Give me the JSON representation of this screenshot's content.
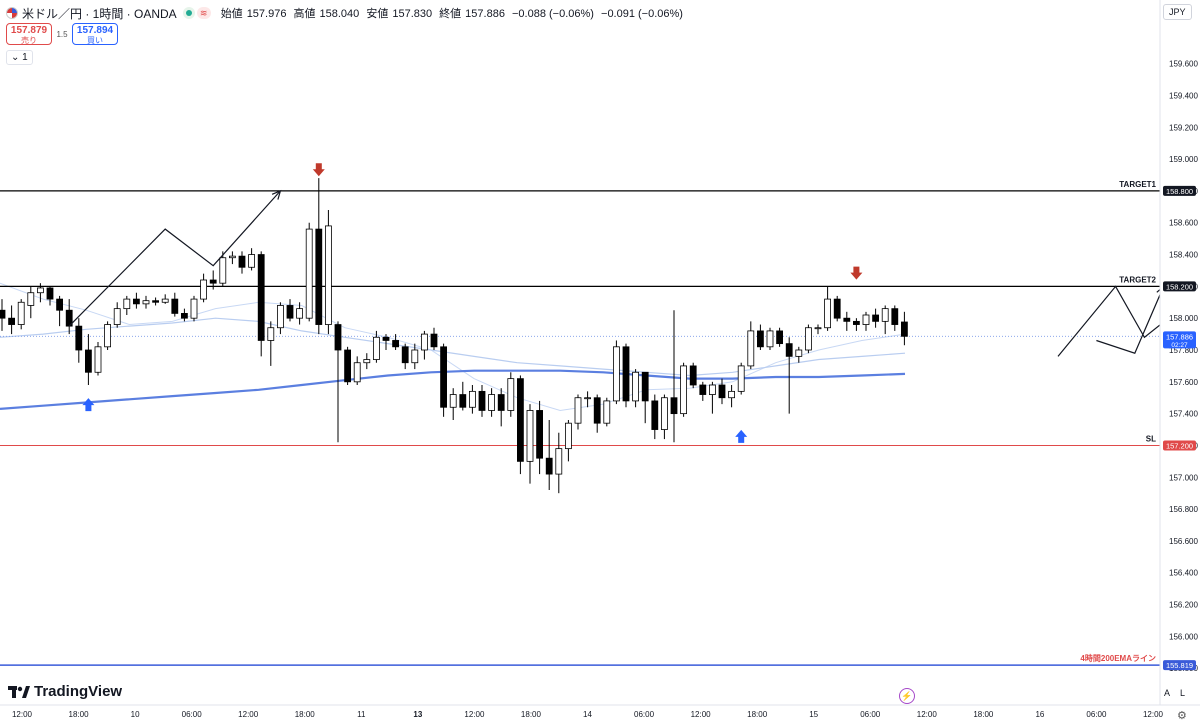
{
  "header": {
    "symbol": "米ドル／円 · 1時間 · OANDA",
    "wave_icon": "≋",
    "ohlc": [
      {
        "label": "始値",
        "value": "157.976"
      },
      {
        "label": "高値",
        "value": "158.040"
      },
      {
        "label": "安値",
        "value": "157.830"
      },
      {
        "label": "終値",
        "value": "157.886"
      }
    ],
    "change": "−0.088 (−0.06%)",
    "change2": "−0.091 (−0.06%)"
  },
  "trade": {
    "sell_price": "157.879",
    "sell_label": "売り",
    "spread": "1.5",
    "buy_price": "157.894",
    "buy_label": "買い"
  },
  "interval_label": "1",
  "currency": "JPY",
  "logo_text": "TradingView",
  "scale_buttons": {
    "a": "A",
    "l": "L"
  },
  "colors": {
    "up_body": "#ffffff",
    "down_body": "#000000",
    "ema200": "#5b7fe0",
    "ma_light": "#b9cdf0",
    "target_line": "#000000",
    "sl_line": "#e04a4a",
    "ema4h_line": "#3a5bd9",
    "arrow_down": "#c0392b",
    "arrow_up": "#2962ff"
  },
  "chart_data": {
    "type": "candlestick",
    "symbol": "USD/JPY",
    "timeframe": "1H",
    "ylim": [
      155.6,
      160.0
    ],
    "y_ticks": [
      "159.600",
      "159.400",
      "159.200",
      "159.000",
      "158.800",
      "158.600",
      "158.400",
      "158.200",
      "158.000",
      "157.800",
      "157.600",
      "157.400",
      "157.200",
      "157.000",
      "156.800",
      "156.600",
      "156.400",
      "156.200",
      "156.000",
      "155.800"
    ],
    "x_ticks": [
      "12:00",
      "18:00",
      "10",
      "06:00",
      "12:00",
      "18:00",
      "11",
      "13",
      "12:00",
      "18:00",
      "14",
      "06:00",
      "12:00",
      "18:00",
      "15",
      "06:00",
      "12:00",
      "18:00",
      "16",
      "06:00",
      "12:00"
    ],
    "x_tick_bold": [
      "13"
    ],
    "levels": [
      {
        "label": "TARGET1",
        "price": 158.8,
        "tag": "158.800",
        "kind": "target"
      },
      {
        "label": "TARGET2",
        "price": 158.2,
        "tag": "158.200",
        "kind": "target"
      },
      {
        "label": "SL",
        "price": 157.2,
        "tag": "157.200",
        "kind": "sl"
      },
      {
        "label": "4時間200EMAライン",
        "price": 155.819,
        "tag": "155.819",
        "kind": "ema4h"
      }
    ],
    "last_price": {
      "value": "157.886",
      "countdown": "02:27",
      "price": 157.886
    },
    "candles": [
      {
        "o": 158.05,
        "h": 158.12,
        "l": 157.92,
        "c": 158.0
      },
      {
        "o": 158.0,
        "h": 158.08,
        "l": 157.9,
        "c": 157.96
      },
      {
        "o": 157.96,
        "h": 158.12,
        "l": 157.93,
        "c": 158.1
      },
      {
        "o": 158.08,
        "h": 158.2,
        "l": 158.0,
        "c": 158.16
      },
      {
        "o": 158.16,
        "h": 158.22,
        "l": 158.1,
        "c": 158.19
      },
      {
        "o": 158.19,
        "h": 158.2,
        "l": 158.08,
        "c": 158.12
      },
      {
        "o": 158.12,
        "h": 158.14,
        "l": 157.95,
        "c": 158.05
      },
      {
        "o": 158.05,
        "h": 158.12,
        "l": 157.9,
        "c": 157.95
      },
      {
        "o": 157.95,
        "h": 158.0,
        "l": 157.72,
        "c": 157.8
      },
      {
        "o": 157.8,
        "h": 157.9,
        "l": 157.58,
        "c": 157.66
      },
      {
        "o": 157.66,
        "h": 157.85,
        "l": 157.64,
        "c": 157.82
      },
      {
        "o": 157.82,
        "h": 157.98,
        "l": 157.8,
        "c": 157.96
      },
      {
        "o": 157.96,
        "h": 158.1,
        "l": 157.94,
        "c": 158.06
      },
      {
        "o": 158.06,
        "h": 158.14,
        "l": 158.02,
        "c": 158.12
      },
      {
        "o": 158.12,
        "h": 158.16,
        "l": 158.06,
        "c": 158.09
      },
      {
        "o": 158.09,
        "h": 158.14,
        "l": 158.06,
        "c": 158.11
      },
      {
        "o": 158.11,
        "h": 158.13,
        "l": 158.08,
        "c": 158.1
      },
      {
        "o": 158.1,
        "h": 158.15,
        "l": 158.09,
        "c": 158.12
      },
      {
        "o": 158.12,
        "h": 158.16,
        "l": 158.01,
        "c": 158.03
      },
      {
        "o": 158.03,
        "h": 158.06,
        "l": 157.98,
        "c": 158.0
      },
      {
        "o": 158.0,
        "h": 158.14,
        "l": 157.98,
        "c": 158.12
      },
      {
        "o": 158.12,
        "h": 158.28,
        "l": 158.1,
        "c": 158.24
      },
      {
        "o": 158.24,
        "h": 158.3,
        "l": 158.18,
        "c": 158.22
      },
      {
        "o": 158.22,
        "h": 158.42,
        "l": 158.2,
        "c": 158.38
      },
      {
        "o": 158.38,
        "h": 158.42,
        "l": 158.34,
        "c": 158.39
      },
      {
        "o": 158.39,
        "h": 158.42,
        "l": 158.28,
        "c": 158.32
      },
      {
        "o": 158.32,
        "h": 158.44,
        "l": 158.3,
        "c": 158.4
      },
      {
        "o": 158.4,
        "h": 158.42,
        "l": 157.76,
        "c": 157.86
      },
      {
        "o": 157.86,
        "h": 157.98,
        "l": 157.7,
        "c": 157.94
      },
      {
        "o": 157.94,
        "h": 158.1,
        "l": 157.9,
        "c": 158.08
      },
      {
        "o": 158.08,
        "h": 158.12,
        "l": 157.98,
        "c": 158.0
      },
      {
        "o": 158.0,
        "h": 158.1,
        "l": 157.96,
        "c": 158.06
      },
      {
        "o": 158.0,
        "h": 158.6,
        "l": 157.98,
        "c": 158.56
      },
      {
        "o": 158.56,
        "h": 158.88,
        "l": 157.9,
        "c": 157.96
      },
      {
        "o": 157.96,
        "h": 158.68,
        "l": 157.9,
        "c": 158.58
      },
      {
        "o": 157.96,
        "h": 157.98,
        "l": 157.22,
        "c": 157.8
      },
      {
        "o": 157.8,
        "h": 157.82,
        "l": 157.58,
        "c": 157.6
      },
      {
        "o": 157.6,
        "h": 157.76,
        "l": 157.58,
        "c": 157.72
      },
      {
        "o": 157.72,
        "h": 157.78,
        "l": 157.68,
        "c": 157.74
      },
      {
        "o": 157.74,
        "h": 157.92,
        "l": 157.72,
        "c": 157.88
      },
      {
        "o": 157.88,
        "h": 157.9,
        "l": 157.8,
        "c": 157.86
      },
      {
        "o": 157.86,
        "h": 157.9,
        "l": 157.8,
        "c": 157.82
      },
      {
        "o": 157.82,
        "h": 157.84,
        "l": 157.68,
        "c": 157.72
      },
      {
        "o": 157.72,
        "h": 157.84,
        "l": 157.68,
        "c": 157.8
      },
      {
        "o": 157.8,
        "h": 157.92,
        "l": 157.74,
        "c": 157.9
      },
      {
        "o": 157.9,
        "h": 157.94,
        "l": 157.8,
        "c": 157.82
      },
      {
        "o": 157.82,
        "h": 157.84,
        "l": 157.38,
        "c": 157.44
      },
      {
        "o": 157.44,
        "h": 157.56,
        "l": 157.36,
        "c": 157.52
      },
      {
        "o": 157.52,
        "h": 157.6,
        "l": 157.42,
        "c": 157.44
      },
      {
        "o": 157.44,
        "h": 157.58,
        "l": 157.4,
        "c": 157.54
      },
      {
        "o": 157.54,
        "h": 157.58,
        "l": 157.38,
        "c": 157.42
      },
      {
        "o": 157.42,
        "h": 157.56,
        "l": 157.38,
        "c": 157.52
      },
      {
        "o": 157.52,
        "h": 157.56,
        "l": 157.32,
        "c": 157.42
      },
      {
        "o": 157.42,
        "h": 157.66,
        "l": 157.38,
        "c": 157.62
      },
      {
        "o": 157.62,
        "h": 157.64,
        "l": 157.02,
        "c": 157.1
      },
      {
        "o": 157.1,
        "h": 157.46,
        "l": 156.96,
        "c": 157.42
      },
      {
        "o": 157.42,
        "h": 157.48,
        "l": 157.02,
        "c": 157.12
      },
      {
        "o": 157.12,
        "h": 157.36,
        "l": 156.92,
        "c": 157.02
      },
      {
        "o": 157.02,
        "h": 157.28,
        "l": 156.9,
        "c": 157.18
      },
      {
        "o": 157.18,
        "h": 157.36,
        "l": 157.1,
        "c": 157.34
      },
      {
        "o": 157.34,
        "h": 157.52,
        "l": 157.3,
        "c": 157.5
      },
      {
        "o": 157.5,
        "h": 157.54,
        "l": 157.44,
        "c": 157.5
      },
      {
        "o": 157.5,
        "h": 157.52,
        "l": 157.28,
        "c": 157.34
      },
      {
        "o": 157.34,
        "h": 157.5,
        "l": 157.32,
        "c": 157.48
      },
      {
        "o": 157.48,
        "h": 157.86,
        "l": 157.46,
        "c": 157.82
      },
      {
        "o": 157.82,
        "h": 157.84,
        "l": 157.44,
        "c": 157.48
      },
      {
        "o": 157.48,
        "h": 157.68,
        "l": 157.44,
        "c": 157.66
      },
      {
        "o": 157.66,
        "h": 157.66,
        "l": 157.34,
        "c": 157.48
      },
      {
        "o": 157.48,
        "h": 157.52,
        "l": 157.24,
        "c": 157.3
      },
      {
        "o": 157.3,
        "h": 157.52,
        "l": 157.24,
        "c": 157.5
      },
      {
        "o": 157.5,
        "h": 158.05,
        "l": 157.22,
        "c": 157.4
      },
      {
        "o": 157.4,
        "h": 157.72,
        "l": 157.38,
        "c": 157.7
      },
      {
        "o": 157.7,
        "h": 157.72,
        "l": 157.56,
        "c": 157.58
      },
      {
        "o": 157.58,
        "h": 157.6,
        "l": 157.48,
        "c": 157.52
      },
      {
        "o": 157.52,
        "h": 157.6,
        "l": 157.4,
        "c": 157.58
      },
      {
        "o": 157.58,
        "h": 157.62,
        "l": 157.46,
        "c": 157.5
      },
      {
        "o": 157.5,
        "h": 157.58,
        "l": 157.44,
        "c": 157.54
      },
      {
        "o": 157.54,
        "h": 157.72,
        "l": 157.52,
        "c": 157.7
      },
      {
        "o": 157.7,
        "h": 157.98,
        "l": 157.68,
        "c": 157.92
      },
      {
        "o": 157.92,
        "h": 157.96,
        "l": 157.8,
        "c": 157.82
      },
      {
        "o": 157.82,
        "h": 157.94,
        "l": 157.8,
        "c": 157.92
      },
      {
        "o": 157.92,
        "h": 157.94,
        "l": 157.82,
        "c": 157.84
      },
      {
        "o": 157.84,
        "h": 157.88,
        "l": 157.4,
        "c": 157.76
      },
      {
        "o": 157.76,
        "h": 157.82,
        "l": 157.72,
        "c": 157.8
      },
      {
        "o": 157.8,
        "h": 157.96,
        "l": 157.78,
        "c": 157.94
      },
      {
        "o": 157.94,
        "h": 157.96,
        "l": 157.9,
        "c": 157.94
      },
      {
        "o": 157.94,
        "h": 158.2,
        "l": 157.92,
        "c": 158.12
      },
      {
        "o": 158.12,
        "h": 158.14,
        "l": 157.98,
        "c": 158.0
      },
      {
        "o": 158.0,
        "h": 158.04,
        "l": 157.92,
        "c": 157.98
      },
      {
        "o": 157.98,
        "h": 158.0,
        "l": 157.92,
        "c": 157.96
      },
      {
        "o": 157.96,
        "h": 158.04,
        "l": 157.92,
        "c": 158.02
      },
      {
        "o": 158.02,
        "h": 158.06,
        "l": 157.94,
        "c": 157.98
      },
      {
        "o": 157.98,
        "h": 158.08,
        "l": 157.9,
        "c": 158.06
      },
      {
        "o": 158.06,
        "h": 158.08,
        "l": 157.92,
        "c": 157.96
      },
      {
        "o": 157.976,
        "h": 158.04,
        "l": 157.83,
        "c": 157.886
      }
    ],
    "candle_x_index": [
      0,
      1,
      2,
      3,
      4,
      5,
      6,
      7,
      8,
      9,
      10,
      11,
      12,
      13,
      14,
      15,
      16,
      17,
      18,
      19,
      20,
      21,
      22,
      23,
      24,
      25,
      26,
      27,
      28,
      29,
      30,
      31,
      32,
      33,
      34,
      35,
      36,
      37,
      38,
      39,
      40,
      41,
      42,
      43,
      44,
      45,
      46,
      47,
      48,
      49,
      50,
      51,
      52,
      53,
      54,
      55,
      56,
      57,
      58,
      59,
      60,
      61,
      62,
      63,
      64,
      65,
      66,
      67,
      68,
      69,
      70,
      71,
      72,
      73,
      74,
      75,
      76,
      77,
      78,
      79,
      80,
      81,
      82,
      83,
      84,
      85,
      86,
      87,
      88,
      89,
      90,
      91,
      92,
      93,
      94
    ],
    "ema200": [
      157.43,
      157.45,
      157.47,
      157.49,
      157.51,
      157.53,
      157.55,
      157.58,
      157.61,
      157.64,
      157.66,
      157.67,
      157.67,
      157.67,
      157.66,
      157.64,
      157.62,
      157.62,
      157.63,
      157.63,
      157.64,
      157.65
    ],
    "ma_slow": [
      157.88,
      157.9,
      157.93,
      157.95,
      157.97,
      158.0,
      157.98,
      157.92,
      157.88,
      157.84,
      157.8,
      157.76,
      157.72,
      157.7,
      157.68,
      157.66,
      157.64,
      157.66,
      157.7,
      157.74,
      157.76,
      157.78
    ],
    "ma_fast": [
      158.22,
      158.12,
      158.05,
      157.96,
      157.98,
      158.06,
      158.1,
      158.08,
      157.94,
      157.88,
      157.8,
      157.62,
      157.5,
      157.42,
      157.46,
      157.55,
      157.56,
      157.6,
      157.72,
      157.8,
      157.86,
      157.9
    ],
    "projections": [
      [
        [
          7,
          157.95
        ],
        [
          17,
          158.56
        ],
        [
          22,
          158.33
        ],
        [
          29,
          158.8
        ]
      ],
      [
        [
          114,
          157.86
        ],
        [
          118,
          157.78
        ],
        [
          121,
          158.2
        ]
      ],
      [
        [
          130,
          157.85
        ],
        [
          134,
          157.72
        ],
        [
          139,
          158.2
        ],
        [
          144,
          158.04
        ],
        [
          150,
          158.73
        ]
      ],
      [
        [
          110,
          157.76
        ],
        [
          116,
          158.2
        ],
        [
          119,
          157.88
        ],
        [
          124,
          158.12
        ],
        [
          127,
          158.36
        ]
      ]
    ],
    "signals": [
      {
        "type": "sell",
        "index": 33,
        "price": 158.93
      },
      {
        "type": "buy",
        "index": 9,
        "price": 157.46
      },
      {
        "type": "buy",
        "index": 77,
        "price": 157.26
      },
      {
        "type": "sell",
        "index": 89,
        "price": 158.28
      }
    ]
  }
}
